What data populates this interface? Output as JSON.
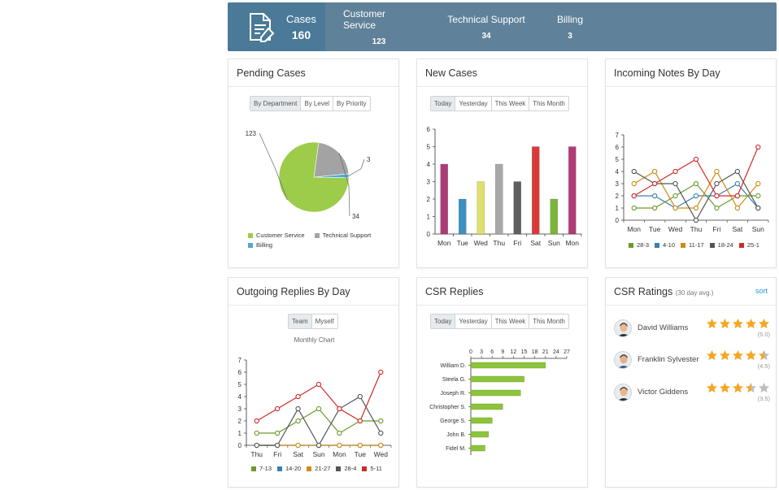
{
  "summary": {
    "cases_label": "Cases",
    "cases_count": "160",
    "stats": [
      {
        "label": "Customer Service",
        "value": "123"
      },
      {
        "label": "Technical Support",
        "value": "34"
      },
      {
        "label": "Billing",
        "value": "3"
      }
    ]
  },
  "pending_cases": {
    "title": "Pending Cases",
    "tabs": [
      "By Department",
      "By Level",
      "By Priority"
    ],
    "active_tab": "By Department"
  },
  "new_cases": {
    "title": "New Cases",
    "tabs": [
      "Today",
      "Yesterday",
      "This Week",
      "This Month"
    ],
    "active_tab": "Today"
  },
  "incoming_notes": {
    "title": "Incoming Notes By Day"
  },
  "outgoing_replies": {
    "title": "Outgoing Replies By Day",
    "tabs": [
      "Team",
      "Myself"
    ],
    "active_tab": "Team",
    "chart_caption": "Monthly Chart"
  },
  "csr_replies": {
    "title": "CSR Replies",
    "tabs": [
      "Today",
      "Yesterday",
      "This Week",
      "This Month"
    ],
    "active_tab": "Today"
  },
  "csr_ratings": {
    "title": "CSR Ratings",
    "subtitle": "(30 day avg.)",
    "sort_label": "sort",
    "rows": [
      {
        "name": "David Williams",
        "rating": 5.0,
        "score_label": "(5.0)"
      },
      {
        "name": "Franklin Sylvester",
        "rating": 4.5,
        "score_label": "(4.5)"
      },
      {
        "name": "Victor Giddens",
        "rating": 3.5,
        "score_label": "(3.5)"
      }
    ],
    "star_color": "#f5a623",
    "star_empty_color": "#bdbdbd"
  },
  "chart_data": [
    {
      "id": "pending",
      "type": "pie",
      "categories": [
        "Customer Service",
        "Technical Support",
        "Billing"
      ],
      "values": [
        123,
        34,
        3
      ],
      "colors": [
        "#9ccc4a",
        "#a3a3a3",
        "#4fa8d8"
      ],
      "legend": "bottom"
    },
    {
      "id": "newcases",
      "type": "bar",
      "categories": [
        "Mon",
        "Tue",
        "Wed",
        "Thu",
        "Fri",
        "Sat",
        "Sun",
        "Mon"
      ],
      "values": [
        4,
        2,
        3,
        4,
        3,
        5,
        2,
        5
      ],
      "colors": [
        "#b03a78",
        "#3f8fc0",
        "#dfe06a",
        "#a8a8a8",
        "#5f5f5f",
        "#d83a3a",
        "#7bb63a",
        "#b03a78"
      ],
      "ylim": [
        0,
        6
      ],
      "yticks": [
        0,
        1,
        2,
        3,
        4,
        5,
        6
      ]
    },
    {
      "id": "incoming",
      "type": "line",
      "x": [
        "Mon",
        "Tue",
        "Wed",
        "Thu",
        "Fri",
        "Sat",
        "Sun"
      ],
      "ylim": [
        0,
        7
      ],
      "yticks": [
        0,
        1,
        2,
        3,
        4,
        5,
        6,
        7
      ],
      "series": [
        {
          "name": "28-3",
          "color": "#6b9a2a",
          "values": [
            1,
            1,
            2,
            3,
            1,
            2,
            2
          ]
        },
        {
          "name": "4-10",
          "color": "#3a7fb0",
          "values": [
            2,
            2,
            1,
            2,
            2,
            3,
            1
          ]
        },
        {
          "name": "11-17",
          "color": "#d08a14",
          "values": [
            3,
            4,
            1,
            1,
            4,
            1,
            3
          ]
        },
        {
          "name": "18-24",
          "color": "#555555",
          "values": [
            4,
            3,
            3,
            0,
            3,
            4,
            1
          ]
        },
        {
          "name": "25-1",
          "color": "#d02a2a",
          "values": [
            2,
            3,
            4,
            5,
            2,
            2,
            6
          ]
        }
      ],
      "legend": "bottom"
    },
    {
      "id": "outgoing",
      "type": "line",
      "x": [
        "Thu",
        "Fri",
        "Sat",
        "Sun",
        "Mon",
        "Tue",
        "Wed"
      ],
      "ylim": [
        0,
        7
      ],
      "yticks": [
        0,
        1,
        2,
        3,
        4,
        5,
        6,
        7
      ],
      "series": [
        {
          "name": "7-13",
          "color": "#6b9a2a",
          "values": [
            1,
            1,
            2,
            3,
            1,
            2,
            2
          ]
        },
        {
          "name": "14-20",
          "color": "#3a7fb0",
          "values": [
            0,
            0,
            0,
            0,
            0,
            0,
            0
          ]
        },
        {
          "name": "21-27",
          "color": "#d08a14",
          "values": [
            0,
            0,
            0,
            0,
            0,
            0,
            0
          ]
        },
        {
          "name": "28-4",
          "color": "#555555",
          "values": [
            0,
            0,
            3,
            0,
            3,
            4,
            1
          ]
        },
        {
          "name": "5-11",
          "color": "#d02a2a",
          "values": [
            2,
            3,
            4,
            5,
            3,
            2,
            6
          ]
        }
      ],
      "legend": "bottom"
    },
    {
      "id": "csrreplies",
      "type": "bar",
      "orientation": "horizontal",
      "categories": [
        "William D.",
        "Steela G.",
        "Joseph R.",
        "Christopher S.",
        "George S.",
        "John B.",
        "Fidel M."
      ],
      "values": [
        21,
        15,
        14,
        9,
        6,
        5,
        4
      ],
      "color": "#8cc43c",
      "xlim": [
        0,
        27
      ],
      "xticks": [
        0,
        3,
        6,
        9,
        12,
        15,
        18,
        21,
        24,
        27
      ]
    }
  ]
}
